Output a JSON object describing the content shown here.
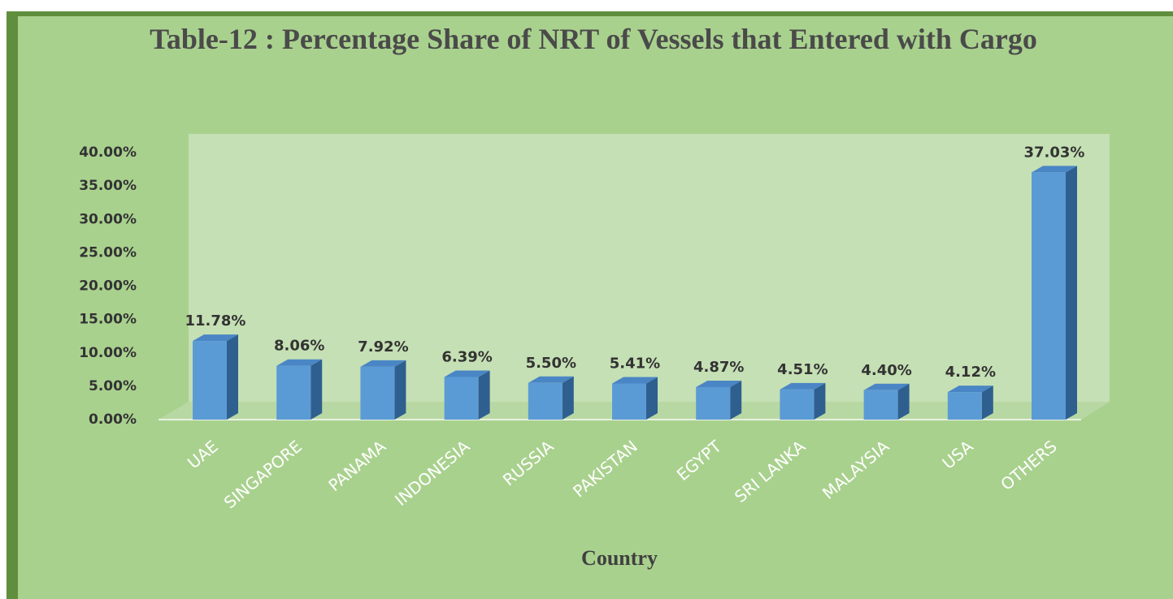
{
  "chart_data": {
    "type": "bar3d",
    "title": "Table-12 : Percentage Share of NRT of Vessels that Entered with Cargo",
    "x_label": "Country",
    "categories": [
      "UAE",
      "SINGAPORE",
      "PANAMA",
      "INDONESIA",
      "RUSSIA",
      "PAKISTAN",
      "EGYPT",
      "SRI LANKA",
      "MALAYSIA",
      "USA",
      "OTHERS"
    ],
    "values": [
      11.78,
      8.06,
      7.92,
      6.39,
      5.5,
      5.41,
      4.87,
      4.51,
      4.4,
      4.12,
      37.03
    ],
    "value_labels": [
      "11.78%",
      "8.06%",
      "7.92%",
      "6.39%",
      "5.50%",
      "5.41%",
      "4.87%",
      "4.51%",
      "4.40%",
      "4.12%",
      "37.03%"
    ],
    "color": "#5b9bd5",
    "ylim": [
      0,
      40
    ],
    "yticks": [
      {
        "value": 0,
        "label": "0.00%"
      },
      {
        "value": 5,
        "label": "5.00%"
      },
      {
        "value": 10,
        "label": "10.00%"
      },
      {
        "value": 15,
        "label": "15.00%"
      },
      {
        "value": 20,
        "label": "20.00%"
      },
      {
        "value": 25,
        "label": "25.00%"
      },
      {
        "value": 30,
        "label": "30.00%"
      },
      {
        "value": 35,
        "label": "35.00%"
      },
      {
        "value": 40,
        "label": "40.00%"
      }
    ]
  }
}
